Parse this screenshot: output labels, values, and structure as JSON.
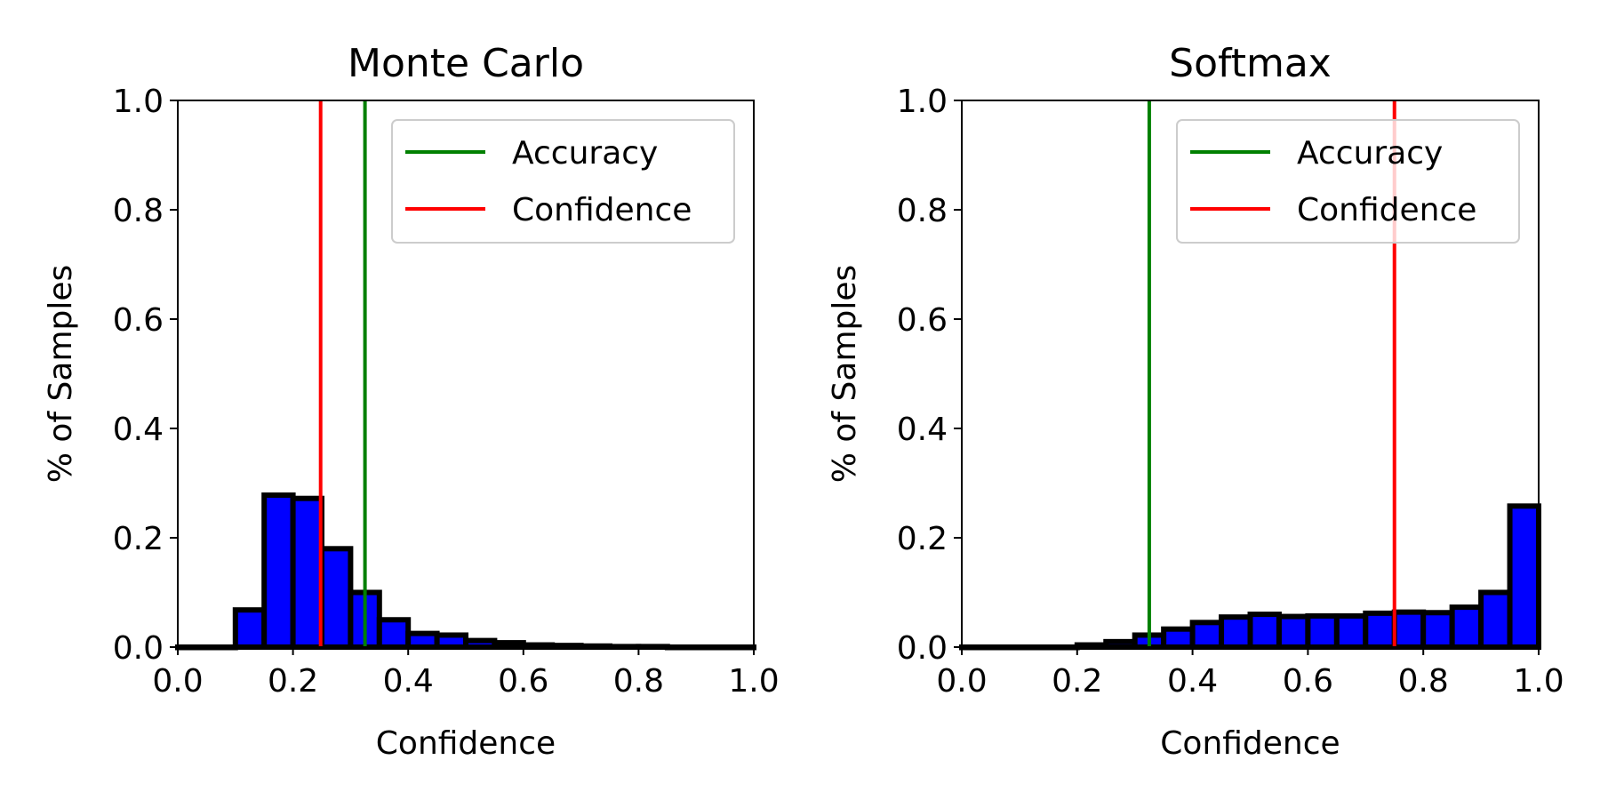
{
  "chart_data": [
    {
      "type": "bar",
      "title": "Monte Carlo",
      "xlabel": "Confidence",
      "ylabel": "% of Samples",
      "xlim": [
        0.0,
        1.0
      ],
      "ylim": [
        0.0,
        1.0
      ],
      "xticks": [
        "0.0",
        "0.2",
        "0.4",
        "0.6",
        "0.8",
        "1.0"
      ],
      "yticks": [
        "0.0",
        "0.2",
        "0.4",
        "0.6",
        "0.8",
        "1.0"
      ],
      "grid": false,
      "bin_width": 0.05,
      "bin_starts": [
        0.0,
        0.05,
        0.1,
        0.15,
        0.2,
        0.25,
        0.3,
        0.35,
        0.4,
        0.45,
        0.5,
        0.55,
        0.6,
        0.65,
        0.7,
        0.75,
        0.8,
        0.85,
        0.9,
        0.95
      ],
      "values": [
        0.0,
        0.0,
        0.068,
        0.278,
        0.272,
        0.18,
        0.1,
        0.05,
        0.025,
        0.022,
        0.012,
        0.008,
        0.004,
        0.003,
        0.002,
        0.001,
        0.001,
        0.0,
        0.0,
        0.0
      ],
      "bar_color": "#0000ff",
      "edge_color": "#000000",
      "vlines": [
        {
          "name": "Accuracy",
          "x": 0.325,
          "color": "#008000"
        },
        {
          "name": "Confidence",
          "x": 0.248,
          "color": "#ff0000"
        }
      ],
      "legend": {
        "placement": "top-right",
        "entries": [
          "Accuracy",
          "Confidence"
        ]
      }
    },
    {
      "type": "bar",
      "title": "Softmax",
      "xlabel": "Confidence",
      "ylabel": "% of Samples",
      "xlim": [
        0.0,
        1.0
      ],
      "ylim": [
        0.0,
        1.0
      ],
      "xticks": [
        "0.0",
        "0.2",
        "0.4",
        "0.6",
        "0.8",
        "1.0"
      ],
      "yticks": [
        "0.0",
        "0.2",
        "0.4",
        "0.6",
        "0.8",
        "1.0"
      ],
      "grid": false,
      "bin_width": 0.05,
      "bin_starts": [
        0.0,
        0.05,
        0.1,
        0.15,
        0.2,
        0.25,
        0.3,
        0.35,
        0.4,
        0.45,
        0.5,
        0.55,
        0.6,
        0.65,
        0.7,
        0.75,
        0.8,
        0.85,
        0.9,
        0.95
      ],
      "values": [
        0.0,
        0.0,
        0.0,
        0.0,
        0.004,
        0.01,
        0.022,
        0.033,
        0.045,
        0.055,
        0.06,
        0.056,
        0.057,
        0.057,
        0.062,
        0.064,
        0.063,
        0.073,
        0.1,
        0.258
      ],
      "bar_color": "#0000ff",
      "edge_color": "#000000",
      "vlines": [
        {
          "name": "Accuracy",
          "x": 0.325,
          "color": "#008000"
        },
        {
          "name": "Confidence",
          "x": 0.75,
          "color": "#ff0000"
        }
      ],
      "legend": {
        "placement": "top-right",
        "entries": [
          "Accuracy",
          "Confidence"
        ]
      }
    }
  ]
}
